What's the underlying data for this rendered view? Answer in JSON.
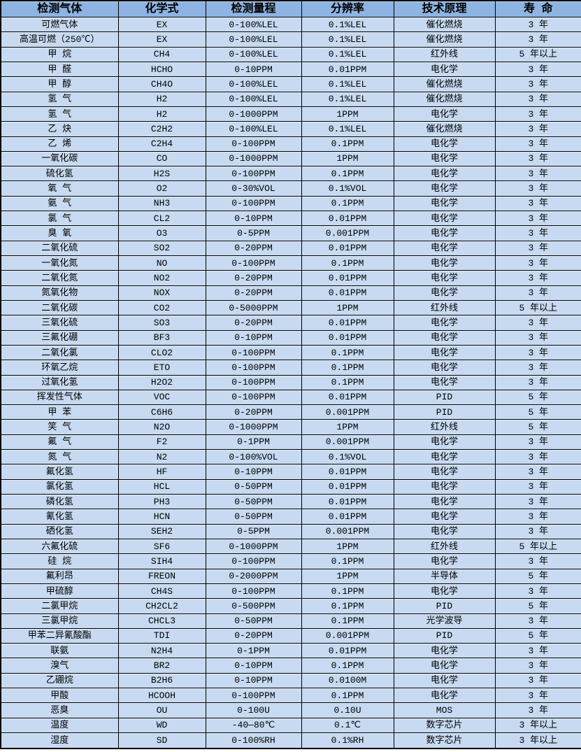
{
  "table": {
    "colors": {
      "header_bg": "#8db4e2",
      "body_bg": "#c7daf1",
      "border": "#000000",
      "text": "#000000"
    },
    "columns": [
      {
        "key": "gas",
        "label": "检测气体"
      },
      {
        "key": "formula",
        "label": "化学式"
      },
      {
        "key": "range",
        "label": "检测量程"
      },
      {
        "key": "resolution",
        "label": "分辨率"
      },
      {
        "key": "principle",
        "label": "技术原理"
      },
      {
        "key": "lifespan",
        "label": "寿 命"
      }
    ],
    "rows": [
      [
        "可燃气体",
        "EX",
        "0-100%LEL",
        "0.1%LEL",
        "催化燃烧",
        "3 年"
      ],
      [
        "高温可燃（250℃）",
        "EX",
        "0-100%LEL",
        "0.1%LEL",
        "催化燃烧",
        "3 年"
      ],
      [
        "甲 烷",
        "CH4",
        "0-100%LEL",
        "0.1%LEL",
        "红外线",
        "5 年以上"
      ],
      [
        "甲 醛",
        "HCHO",
        "0-10PPM",
        "0.01PPM",
        "电化学",
        "3 年"
      ],
      [
        "甲 醇",
        "CH4O",
        "0-100%LEL",
        "0.1%LEL",
        "催化燃烧",
        "3 年"
      ],
      [
        "氢 气",
        "H2",
        "0-100%LEL",
        "0.1%LEL",
        "催化燃烧",
        "3 年"
      ],
      [
        "氢 气",
        "H2",
        "0-1000PPM",
        "1PPM",
        "电化学",
        "3 年"
      ],
      [
        "乙 炔",
        "C2H2",
        "0-100%LEL",
        "0.1%LEL",
        "催化燃烧",
        "3 年"
      ],
      [
        "乙 烯",
        "C2H4",
        "0-100PPM",
        "0.1PPM",
        "电化学",
        "3 年"
      ],
      [
        "一氧化碳",
        "CO",
        "0-1000PPM",
        "1PPM",
        "电化学",
        "3 年"
      ],
      [
        "硫化氢",
        "H2S",
        "0-100PPM",
        "0.1PPM",
        "电化学",
        "3 年"
      ],
      [
        "氧 气",
        "O2",
        "0-30%VOL",
        "0.1%VOL",
        "电化学",
        "3 年"
      ],
      [
        "氨 气",
        "NH3",
        "0-100PPM",
        "0.1PPM",
        "电化学",
        "3 年"
      ],
      [
        "氯 气",
        "CL2",
        "0-10PPM",
        "0.01PPM",
        "电化学",
        "3 年"
      ],
      [
        "臭 氧",
        "O3",
        "0-5PPM",
        "0.001PPM",
        "电化学",
        "3 年"
      ],
      [
        "二氧化硫",
        "SO2",
        "0-20PPM",
        "0.01PPM",
        "电化学",
        "3 年"
      ],
      [
        "一氧化氮",
        "NO",
        "0-100PPM",
        "0.1PPM",
        "电化学",
        "3 年"
      ],
      [
        "二氧化氮",
        "NO2",
        "0-20PPM",
        "0.01PPM",
        "电化学",
        "3 年"
      ],
      [
        "氮氧化物",
        "NOX",
        "0-20PPM",
        "0.01PPM",
        "电化学",
        "3 年"
      ],
      [
        "二氧化碳",
        "CO2",
        "0-5000PPM",
        "1PPM",
        "红外线",
        "5 年以上"
      ],
      [
        "三氧化硫",
        "SO3",
        "0-20PPM",
        "0.01PPM",
        "电化学",
        "3 年"
      ],
      [
        "三氟化硼",
        "BF3",
        "0-10PPM",
        "0.01PPM",
        "电化学",
        "3 年"
      ],
      [
        "二氧化氯",
        "CLO2",
        "0-100PPM",
        "0.1PPM",
        "电化学",
        "3 年"
      ],
      [
        "环氧乙烷",
        "ETO",
        "0-100PPM",
        "0.1PPM",
        "电化学",
        "3 年"
      ],
      [
        "过氧化氢",
        "H2O2",
        "0-100PPM",
        "0.1PPM",
        "电化学",
        "3 年"
      ],
      [
        "挥发性气体",
        "VOC",
        "0-100PPM",
        "0.01PPM",
        "PID",
        "5 年"
      ],
      [
        "甲 苯",
        "C6H6",
        "0-20PPM",
        "0.001PPM",
        "PID",
        "5 年"
      ],
      [
        "笑 气",
        "N2O",
        "0-1000PPM",
        "1PPM",
        "红外线",
        "5 年"
      ],
      [
        "氟 气",
        "F2",
        "0-1PPM",
        "0.001PPM",
        "电化学",
        "3 年"
      ],
      [
        "氮 气",
        "N2",
        "0-100%VOL",
        "0.1%VOL",
        "电化学",
        "3 年"
      ],
      [
        "氟化氢",
        "HF",
        "0-10PPM",
        "0.01PPM",
        "电化学",
        "3 年"
      ],
      [
        "氯化氢",
        "HCL",
        "0-50PPM",
        "0.01PPM",
        "电化学",
        "3 年"
      ],
      [
        "磷化氢",
        "PH3",
        "0-50PPM",
        "0.01PPM",
        "电化学",
        "3 年"
      ],
      [
        "氰化氢",
        "HCN",
        "0-50PPM",
        "0.01PPM",
        "电化学",
        "3 年"
      ],
      [
        "硒化氢",
        "SEH2",
        "0-5PPM",
        "0.001PPM",
        "电化学",
        "3 年"
      ],
      [
        "六氟化硫",
        "SF6",
        "0-1000PPM",
        "1PPM",
        "红外线",
        "5 年以上"
      ],
      [
        "硅 烷",
        "SIH4",
        "0-100PPM",
        "0.1PPM",
        "电化学",
        "3 年"
      ],
      [
        "氟利昂",
        "FREON",
        "0-2000PPM",
        "1PPM",
        "半导体",
        "5 年"
      ],
      [
        "甲硫醇",
        "CH4S",
        "0-100PPM",
        "0.1PPM",
        "电化学",
        "3 年"
      ],
      [
        "二氯甲烷",
        "CH2CL2",
        "0-500PPM",
        "0.1PPM",
        "PID",
        "5 年"
      ],
      [
        "三氯甲烷",
        "CHCL3",
        "0-50PPM",
        "0.1PPM",
        "光学波导",
        "3 年"
      ],
      [
        "甲苯二异氰酸酯",
        "TDI",
        "0-20PPM",
        "0.001PPM",
        "PID",
        "5 年"
      ],
      [
        "联氨",
        "N2H4",
        "0-1PPM",
        "0.01PPM",
        "电化学",
        "3 年"
      ],
      [
        "溴气",
        "BR2",
        "0-10PPM",
        "0.1PPM",
        "电化学",
        "3 年"
      ],
      [
        "乙硼烷",
        "B2H6",
        "0-10PPM",
        "0.0100M",
        "电化学",
        "3 年"
      ],
      [
        "甲酸",
        "HCOOH",
        "0-100PPM",
        "0.1PPM",
        "电化学",
        "3 年"
      ],
      [
        "恶臭",
        "OU",
        "0-100U",
        "0.10U",
        "MOS",
        "3 年"
      ],
      [
        "温度",
        "WD",
        "-40—80℃",
        "0.1℃",
        "数字芯片",
        "3 年以上"
      ],
      [
        "湿度",
        "SD",
        "0-100%RH",
        "0.1%RH",
        "数字芯片",
        "3 年以上"
      ]
    ]
  }
}
